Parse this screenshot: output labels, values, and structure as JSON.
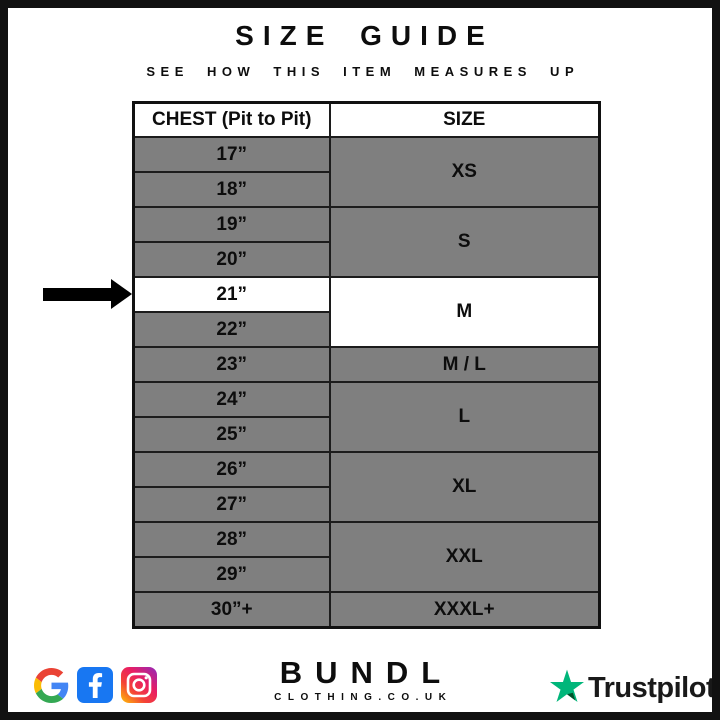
{
  "page": {
    "title": "SIZE GUIDE",
    "subtitle": "SEE HOW THIS ITEM MEASURES UP"
  },
  "table": {
    "columns": [
      "CHEST (Pit to Pit)",
      "SIZE"
    ],
    "highlight_chest": "21”",
    "groups": [
      {
        "size": "XS",
        "chests": [
          "17”",
          "18”"
        ],
        "highlighted": false
      },
      {
        "size": "S",
        "chests": [
          "19”",
          "20”"
        ],
        "highlighted": false
      },
      {
        "size": "M",
        "chests": [
          "21”",
          "22”"
        ],
        "highlighted": true
      },
      {
        "size": "M / L",
        "chests": [
          "23”"
        ],
        "highlighted": false
      },
      {
        "size": "L",
        "chests": [
          "24”",
          "25”"
        ],
        "highlighted": false
      },
      {
        "size": "XL",
        "chests": [
          "26”",
          "27”"
        ],
        "highlighted": false
      },
      {
        "size": "XXL",
        "chests": [
          "28”",
          "29”"
        ],
        "highlighted": false
      },
      {
        "size": "XXXL+",
        "chests": [
          "30”+"
        ],
        "highlighted": false
      }
    ]
  },
  "arrow": {
    "points_to_chest": "21”"
  },
  "footer": {
    "social_icons": [
      "google-icon",
      "facebook-icon",
      "instagram-icon"
    ],
    "brand_name": "BUNDL",
    "brand_domain": "CLOTHING.CO.UK",
    "trustpilot_label": "Trustpilot"
  },
  "colors": {
    "cell_gray": "#7f7f7f",
    "highlight": "#ffffff",
    "border_dark": "#111111",
    "facebook_blue": "#1877F2",
    "trustpilot_green": "#00B67A",
    "trustpilot_dark_green": "#005128",
    "text_dark": "#191919"
  }
}
